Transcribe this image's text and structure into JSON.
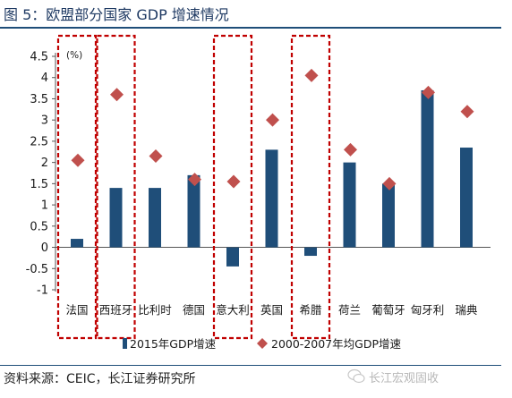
{
  "title": "图  5：欧盟部分国家 GDP 增速情况",
  "source": "资料来源：CEIC，长江证券研究所",
  "watermark": "长江宏观固收",
  "colors": {
    "bar": "#1f4e79",
    "diamond": "#c0504d",
    "highlight": "#c00000"
  },
  "chart_data": {
    "type": "bar",
    "unit_label": "(%)",
    "categories": [
      "法国",
      "西班牙",
      "比利时",
      "德国",
      "意大利",
      "英国",
      "希腊",
      "荷兰",
      "葡萄牙",
      "匈牙利",
      "瑞典"
    ],
    "series": [
      {
        "name": "2015年GDP增速",
        "type": "bar",
        "values": [
          0.2,
          1.4,
          1.4,
          1.7,
          -0.45,
          2.3,
          -0.2,
          2.0,
          1.5,
          3.7,
          2.35
        ]
      },
      {
        "name": "2000-2007年均GDP增速",
        "type": "marker",
        "values": [
          2.05,
          3.6,
          2.15,
          1.6,
          1.55,
          3.0,
          4.05,
          2.3,
          1.5,
          3.65,
          3.2
        ]
      }
    ],
    "yticks": [
      "4.5",
      "4",
      "3.5",
      "3",
      "2.5",
      "2",
      "1.5",
      "1",
      "0.5",
      "0",
      "-0.5",
      "-1"
    ],
    "ylim": [
      -1,
      4.5
    ],
    "highlighted_categories": [
      "法国",
      "西班牙",
      "意大利",
      "希腊"
    ],
    "legend_position": "bottom"
  }
}
